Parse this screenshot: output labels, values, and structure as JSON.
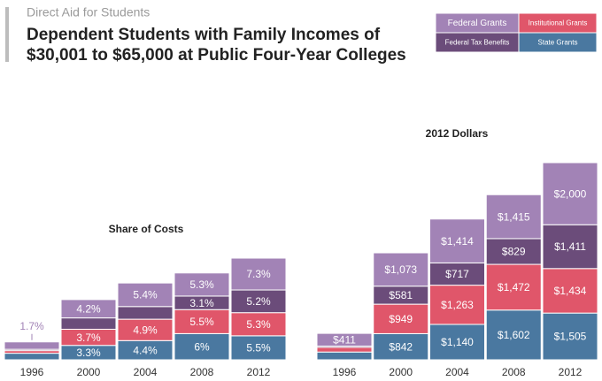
{
  "header": {
    "kicker": "Direct Aid for Students",
    "title_lines": [
      "Dependent Students with Family Incomes of",
      "$30,001 to $65,000 at Public Four-Year Colleges"
    ]
  },
  "chart_data": [
    {
      "type": "bar",
      "stacked": true,
      "title": "Share of Costs",
      "categories": [
        "1996",
        "2000",
        "2004",
        "2008",
        "2012"
      ],
      "series": [
        {
          "name": "State Grants",
          "color": "#4a78a0",
          "values": [
            1.5,
            3.3,
            4.4,
            6,
            5.5
          ],
          "value_labels": [
            null,
            "3.3%",
            "4.4%",
            "6%",
            "5.5%"
          ]
        },
        {
          "name": "Institutional Grants",
          "color": "#e0566a",
          "values": [
            0.6,
            3.7,
            4.9,
            5.5,
            5.3
          ],
          "value_labels": [
            null,
            "3.7%",
            "4.9%",
            "5.5%",
            "5.3%"
          ]
        },
        {
          "name": "Federal Tax Benefits",
          "color": "#6b4c7a",
          "values": [
            0.3,
            2.6,
            2.9,
            3.1,
            5.2
          ],
          "value_labels": [
            null,
            null,
            null,
            "3.1%",
            "5.2%"
          ]
        },
        {
          "name": "Federal Grants",
          "color": "#a283b6",
          "values": [
            1.7,
            4.2,
            5.4,
            5.3,
            7.3
          ],
          "value_labels": [
            "1.7%",
            "4.2%",
            "5.4%",
            "5.3%",
            "7.3%"
          ]
        }
      ]
    },
    {
      "type": "bar",
      "stacked": true,
      "title": "2012 Dollars",
      "categories": [
        "1996",
        "2000",
        "2004",
        "2008",
        "2012"
      ],
      "series": [
        {
          "name": "State Grants",
          "color": "#4a78a0",
          "values": [
            250,
            842,
            1140,
            1602,
            1505
          ],
          "value_labels": [
            null,
            "$842",
            "$1,140",
            "$1,602",
            "$1,505"
          ]
        },
        {
          "name": "Institutional Grants",
          "color": "#e0566a",
          "values": [
            150,
            949,
            1263,
            1472,
            1434
          ],
          "value_labels": [
            null,
            "$949",
            "$1,263",
            "$1,472",
            "$1,434"
          ]
        },
        {
          "name": "Federal Tax Benefits",
          "color": "#6b4c7a",
          "values": [
            40,
            581,
            717,
            829,
            1411
          ],
          "value_labels": [
            null,
            "$581",
            "$717",
            "$829",
            "$1,411"
          ]
        },
        {
          "name": "Federal Grants",
          "color": "#a283b6",
          "values": [
            411,
            1073,
            1414,
            1415,
            2000
          ],
          "value_labels": [
            "$411",
            "$1,073",
            "$1,414",
            "$1,415",
            "$2,000"
          ]
        }
      ]
    }
  ]
}
